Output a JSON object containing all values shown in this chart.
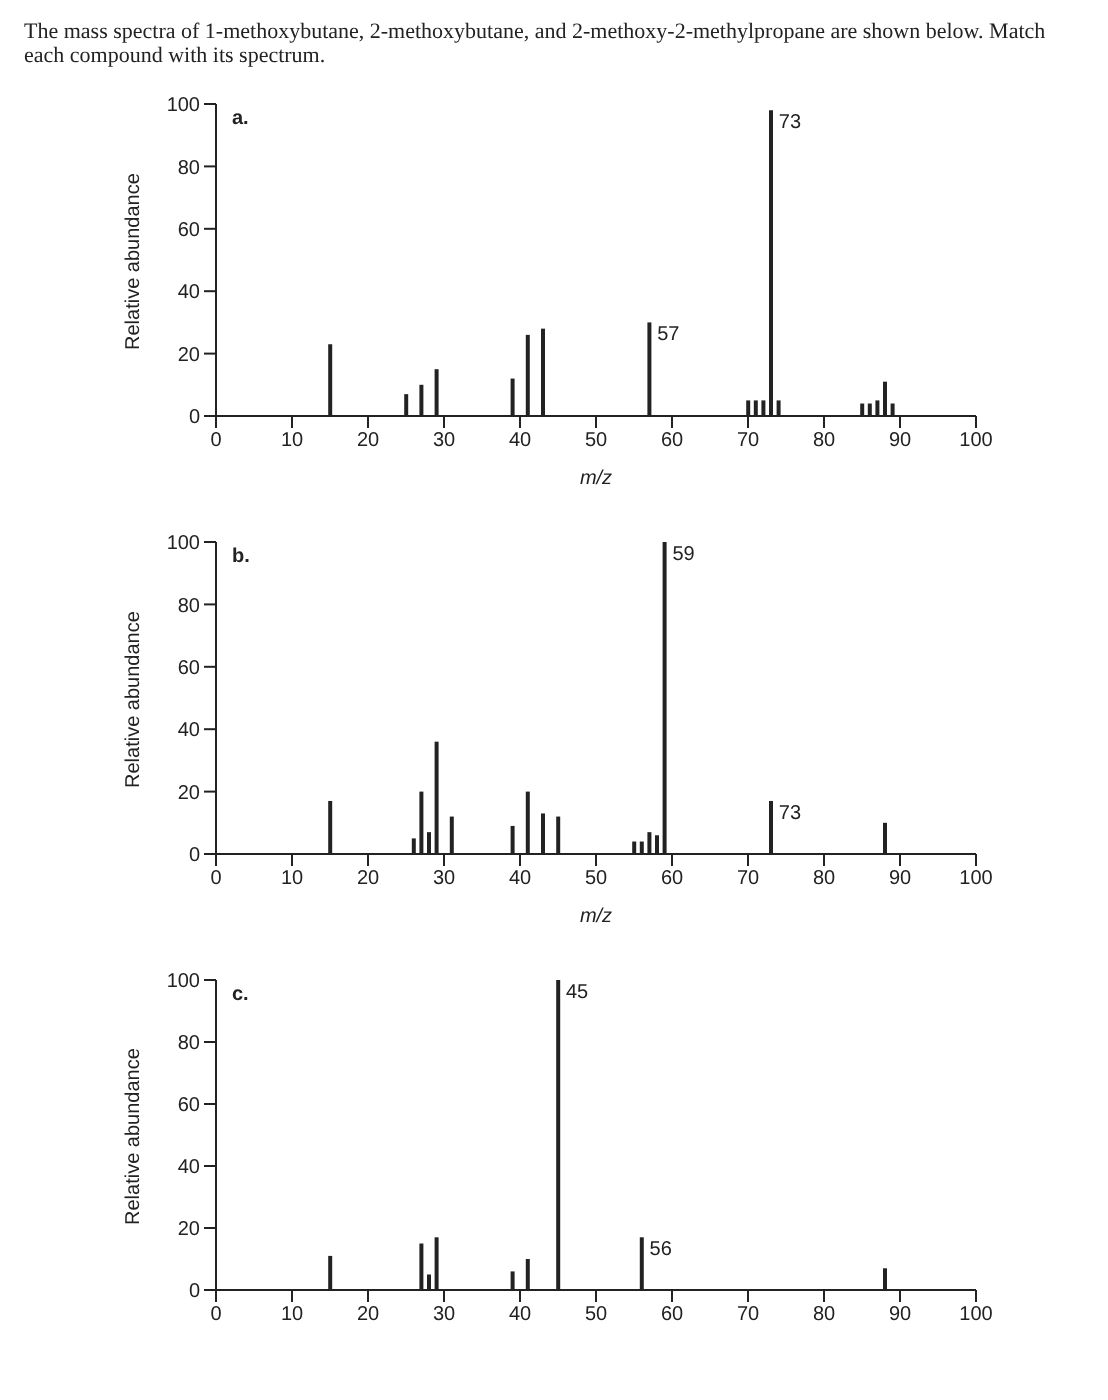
{
  "chart_data": [
    {
      "type": "bar",
      "title": "The mass spectra of 1-methoxybutane, 2-methoxybutane, and 2-methoxy-2-methylpropane are shown below. Match each compound with its spectrum.",
      "subtitle": "a.",
      "xlabel": "m/z",
      "ylabel": "Relative abundance",
      "color": "#222222",
      "x": [
        15,
        25,
        27,
        29,
        39,
        41,
        43,
        57,
        70,
        71,
        72,
        73,
        74,
        85,
        86,
        87,
        88,
        89
      ],
      "values": [
        23,
        7,
        10,
        15,
        12,
        26,
        28,
        30,
        5,
        5,
        5,
        98,
        5,
        4,
        4,
        5,
        11,
        4
      ],
      "annotations": [
        {
          "text": "57",
          "x": 57,
          "y": 30
        },
        {
          "text": "73",
          "x": 73,
          "y": 98
        }
      ],
      "xlim": [
        0,
        100
      ],
      "xticks": [
        0,
        10,
        20,
        30,
        40,
        50,
        60,
        70,
        80,
        90,
        100
      ],
      "ylim": [
        0,
        100
      ],
      "yticks": [
        0,
        20,
        40,
        60,
        80,
        100
      ],
      "grid": false,
      "legend": false
    },
    {
      "type": "bar",
      "subtitle": "b.",
      "xlabel": "m/z",
      "ylabel": "Relative abundance",
      "color": "#222222",
      "x": [
        15,
        26,
        27,
        28,
        29,
        31,
        39,
        41,
        43,
        45,
        55,
        56,
        57,
        58,
        59,
        73,
        88
      ],
      "values": [
        17,
        5,
        20,
        7,
        36,
        12,
        9,
        20,
        13,
        12,
        4,
        4,
        7,
        6,
        100,
        17,
        10
      ],
      "annotations": [
        {
          "text": "59",
          "x": 59,
          "y": 100
        },
        {
          "text": "73",
          "x": 73,
          "y": 17
        }
      ],
      "xlim": [
        0,
        100
      ],
      "xticks": [
        0,
        10,
        20,
        30,
        40,
        50,
        60,
        70,
        80,
        90,
        100
      ],
      "ylim": [
        0,
        100
      ],
      "yticks": [
        0,
        20,
        40,
        60,
        80,
        100
      ],
      "grid": false,
      "legend": false
    },
    {
      "type": "bar",
      "subtitle": "c.",
      "ylabel": "Relative abundance",
      "color": "#222222",
      "x": [
        15,
        27,
        28,
        29,
        39,
        41,
        45,
        56,
        88
      ],
      "values": [
        11,
        15,
        5,
        17,
        6,
        10,
        100,
        17,
        7
      ],
      "annotations": [
        {
          "text": "45",
          "x": 45,
          "y": 100
        },
        {
          "text": "56",
          "x": 56,
          "y": 17
        }
      ],
      "xlim": [
        0,
        100
      ],
      "xticks": [
        0,
        10,
        20,
        30,
        40,
        50,
        60,
        70,
        80,
        90,
        100
      ],
      "ylim": [
        0,
        100
      ],
      "yticks": [
        0,
        20,
        40,
        60,
        80,
        100
      ],
      "grid": false,
      "legend": false
    }
  ]
}
